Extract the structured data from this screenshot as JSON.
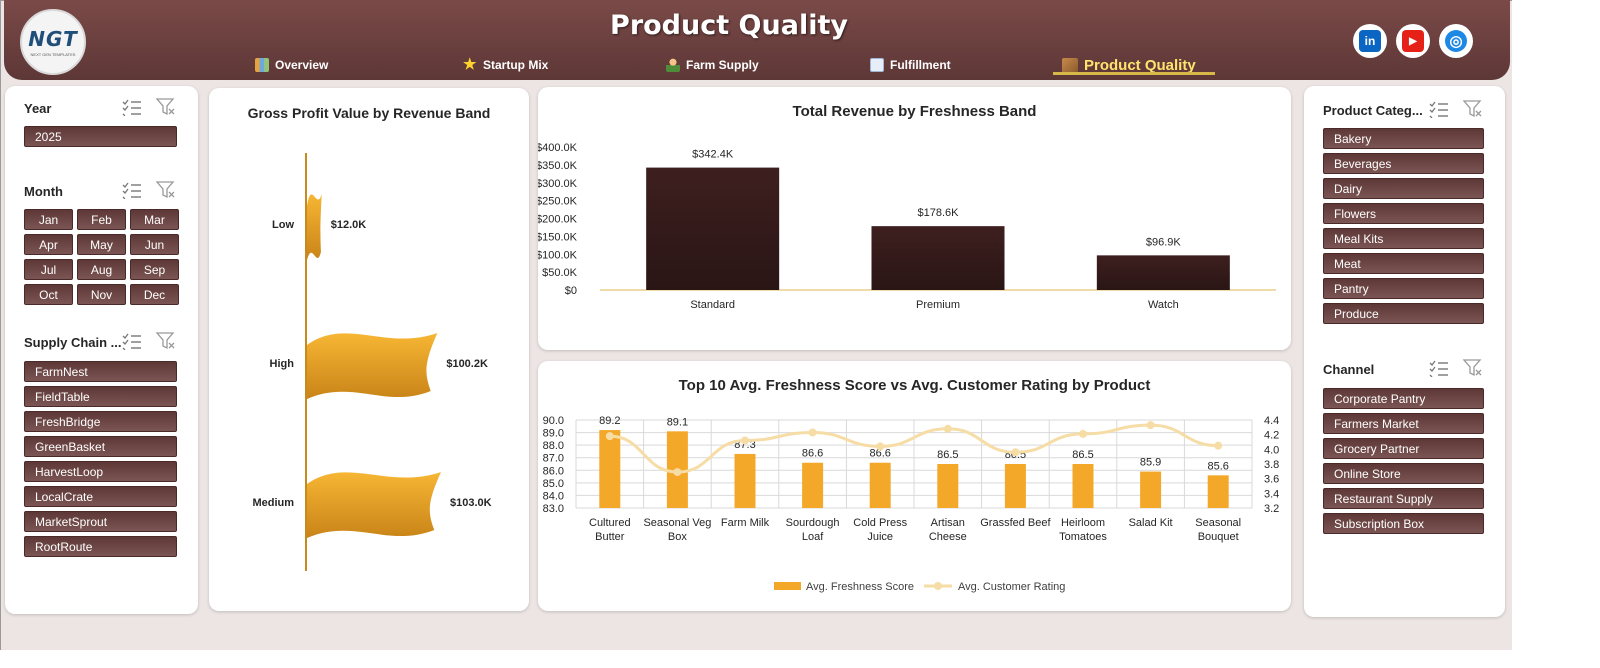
{
  "header": {
    "title": "Product Quality",
    "logo_text": "NGT",
    "logo_sub": "NEXT GEN TEMPLATES",
    "tabs": [
      {
        "label": "Overview",
        "icon": "bar-chart-icon"
      },
      {
        "label": "Startup Mix",
        "icon": "star-icon"
      },
      {
        "label": "Farm Supply",
        "icon": "farmer-icon"
      },
      {
        "label": "Fulfillment",
        "icon": "line-chart-icon"
      },
      {
        "label": "Product Quality",
        "icon": "box-icon"
      }
    ],
    "social": [
      {
        "name": "linkedin-icon",
        "glyph": "in",
        "color": "#0a66c2"
      },
      {
        "name": "youtube-icon",
        "glyph": "▶",
        "color": "#e62117"
      },
      {
        "name": "website-icon",
        "glyph": "◎",
        "color": "#1e88e5"
      }
    ]
  },
  "left_slicers": {
    "year": {
      "title": "Year",
      "items": [
        "2025"
      ]
    },
    "month": {
      "title": "Month",
      "items": [
        "Jan",
        "Feb",
        "Mar",
        "Apr",
        "May",
        "Jun",
        "Jul",
        "Aug",
        "Sep",
        "Oct",
        "Nov",
        "Dec"
      ]
    },
    "supply_chain": {
      "title": "Supply Chain ...",
      "items": [
        "FarmNest",
        "FieldTable",
        "FreshBridge",
        "GreenBasket",
        "HarvestLoop",
        "LocalCrate",
        "MarketSprout",
        "RootRoute"
      ]
    }
  },
  "right_slicers": {
    "product_category": {
      "title": "Product Categ...",
      "items": [
        "Bakery",
        "Beverages",
        "Dairy",
        "Flowers",
        "Meal Kits",
        "Meat",
        "Pantry",
        "Produce"
      ]
    },
    "channel": {
      "title": "Channel",
      "items": [
        "Corporate Pantry",
        "Farmers Market",
        "Grocery Partner",
        "Online Store",
        "Restaurant Supply",
        "Subscription Box"
      ]
    }
  },
  "chart_data": [
    {
      "type": "bar",
      "title": "Gross Profit Value by Revenue Band",
      "orientation": "horizontal",
      "categories": [
        "Low",
        "High",
        "Medium"
      ],
      "values": [
        12.0,
        100.2,
        103.0
      ],
      "value_labels": [
        "$12.0K",
        "$100.2K",
        "$103.0K"
      ],
      "unit": "K",
      "color": "#f2a72a"
    },
    {
      "type": "bar",
      "title": "Total Revenue by Freshness Band",
      "categories": [
        "Standard",
        "Premium",
        "Watch"
      ],
      "values": [
        342.4,
        178.6,
        96.9
      ],
      "value_labels": [
        "$342.4K",
        "$178.6K",
        "$96.9K"
      ],
      "ylim": [
        0,
        400
      ],
      "yticks": [
        "$0",
        "$50.0K",
        "$100.0K",
        "$150.0K",
        "$200.0K",
        "$250.0K",
        "$300.0K",
        "$350.0K",
        "$400.0K"
      ],
      "color": "#3b1e1e",
      "grid": false
    },
    {
      "type": "bar",
      "title": "Top 10 Avg. Freshness Score vs Avg. Customer Rating by Product",
      "categories": [
        "Cultured Butter",
        "Seasonal Veg Box",
        "Farm Milk",
        "Sourdough Loaf",
        "Cold Press Juice",
        "Artisan Cheese",
        "Grassfed Beef",
        "Heirloom Tomatoes",
        "Salad Kit",
        "Seasonal Bouquet"
      ],
      "series": [
        {
          "name": "Avg. Freshness Score",
          "type": "bar",
          "axis": "left",
          "color": "#f4a82a",
          "values": [
            89.2,
            89.1,
            87.3,
            86.6,
            86.6,
            86.5,
            86.5,
            86.5,
            85.9,
            85.6
          ],
          "labels": [
            "89.2",
            "89.1",
            "87.3",
            "86.6",
            "86.6",
            "86.5",
            "86.5",
            "86.5",
            "85.9",
            "85.6"
          ]
        },
        {
          "name": "Avg. Customer Rating",
          "type": "line",
          "axis": "right",
          "color": "#f6dca5",
          "values": [
            4.18,
            3.69,
            4.12,
            4.23,
            4.04,
            4.28,
            3.96,
            4.21,
            4.33,
            4.05
          ]
        }
      ],
      "ylim_left": [
        83.0,
        90.0
      ],
      "yticks_left": [
        "83.0",
        "84.0",
        "85.0",
        "86.0",
        "87.0",
        "88.0",
        "89.0",
        "90.0"
      ],
      "ylim_right": [
        3.2,
        4.4
      ],
      "yticks_right": [
        "3.2",
        "3.4",
        "3.6",
        "3.8",
        "4.0",
        "4.2",
        "4.4"
      ],
      "grid": true,
      "legend": "bottom"
    }
  ]
}
